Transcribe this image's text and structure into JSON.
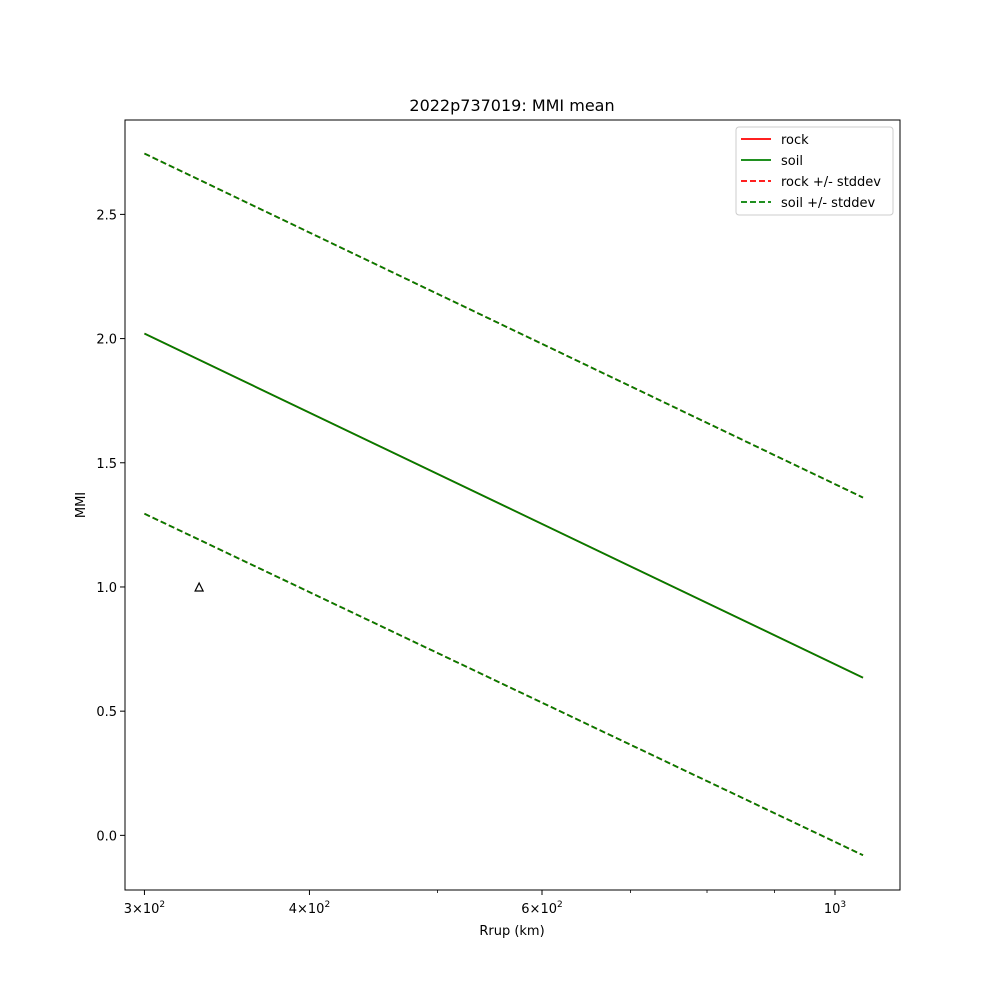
{
  "chart_data": {
    "type": "line",
    "title": "2022p737019: MMI mean",
    "xlabel": "Rrup (km)",
    "ylabel": "MMI",
    "xscale": "log",
    "xlim": [
      290,
      1120
    ],
    "ylim": [
      -0.22,
      2.88
    ],
    "x_major_ticks": [
      {
        "value": 300,
        "base": "3",
        "exp": "2"
      },
      {
        "value": 400,
        "base": "4",
        "exp": "2"
      },
      {
        "value": 600,
        "base": "6",
        "exp": "2"
      },
      {
        "value": 1000,
        "base": "",
        "exp": "3"
      }
    ],
    "x_minor_ticks": [
      500,
      700,
      800,
      900
    ],
    "y_ticks": [
      {
        "value": 0.0,
        "label": "0.0"
      },
      {
        "value": 0.5,
        "label": "0.5"
      },
      {
        "value": 1.0,
        "label": "1.0"
      },
      {
        "value": 1.5,
        "label": "1.5"
      },
      {
        "value": 2.0,
        "label": "2.0"
      },
      {
        "value": 2.5,
        "label": "2.5"
      }
    ],
    "series": [
      {
        "name": "rock",
        "style": "solid",
        "color": "#ff0000",
        "x": [
          300,
          1050
        ],
        "y": [
          2.02,
          0.635
        ]
      },
      {
        "name": "soil",
        "style": "solid",
        "color": "#008000",
        "x": [
          300,
          1050
        ],
        "y": [
          2.02,
          0.635
        ]
      },
      {
        "name": "rock +/- stddev",
        "style": "dashed",
        "color": "#ff0000",
        "x": [
          300,
          1050
        ],
        "y": [
          2.745,
          1.36
        ],
        "y_lower": [
          1.295,
          -0.08
        ]
      },
      {
        "name": "soil +/- stddev",
        "style": "dashed",
        "color": "#008000",
        "x": [
          300,
          1050
        ],
        "y": [
          2.745,
          1.36
        ],
        "y_lower": [
          1.295,
          -0.08
        ]
      }
    ],
    "points": [
      {
        "x": 330,
        "y": 1.0,
        "marker": "triangle-open",
        "color": "#000000"
      }
    ],
    "legend": "top-right",
    "grid": false
  }
}
